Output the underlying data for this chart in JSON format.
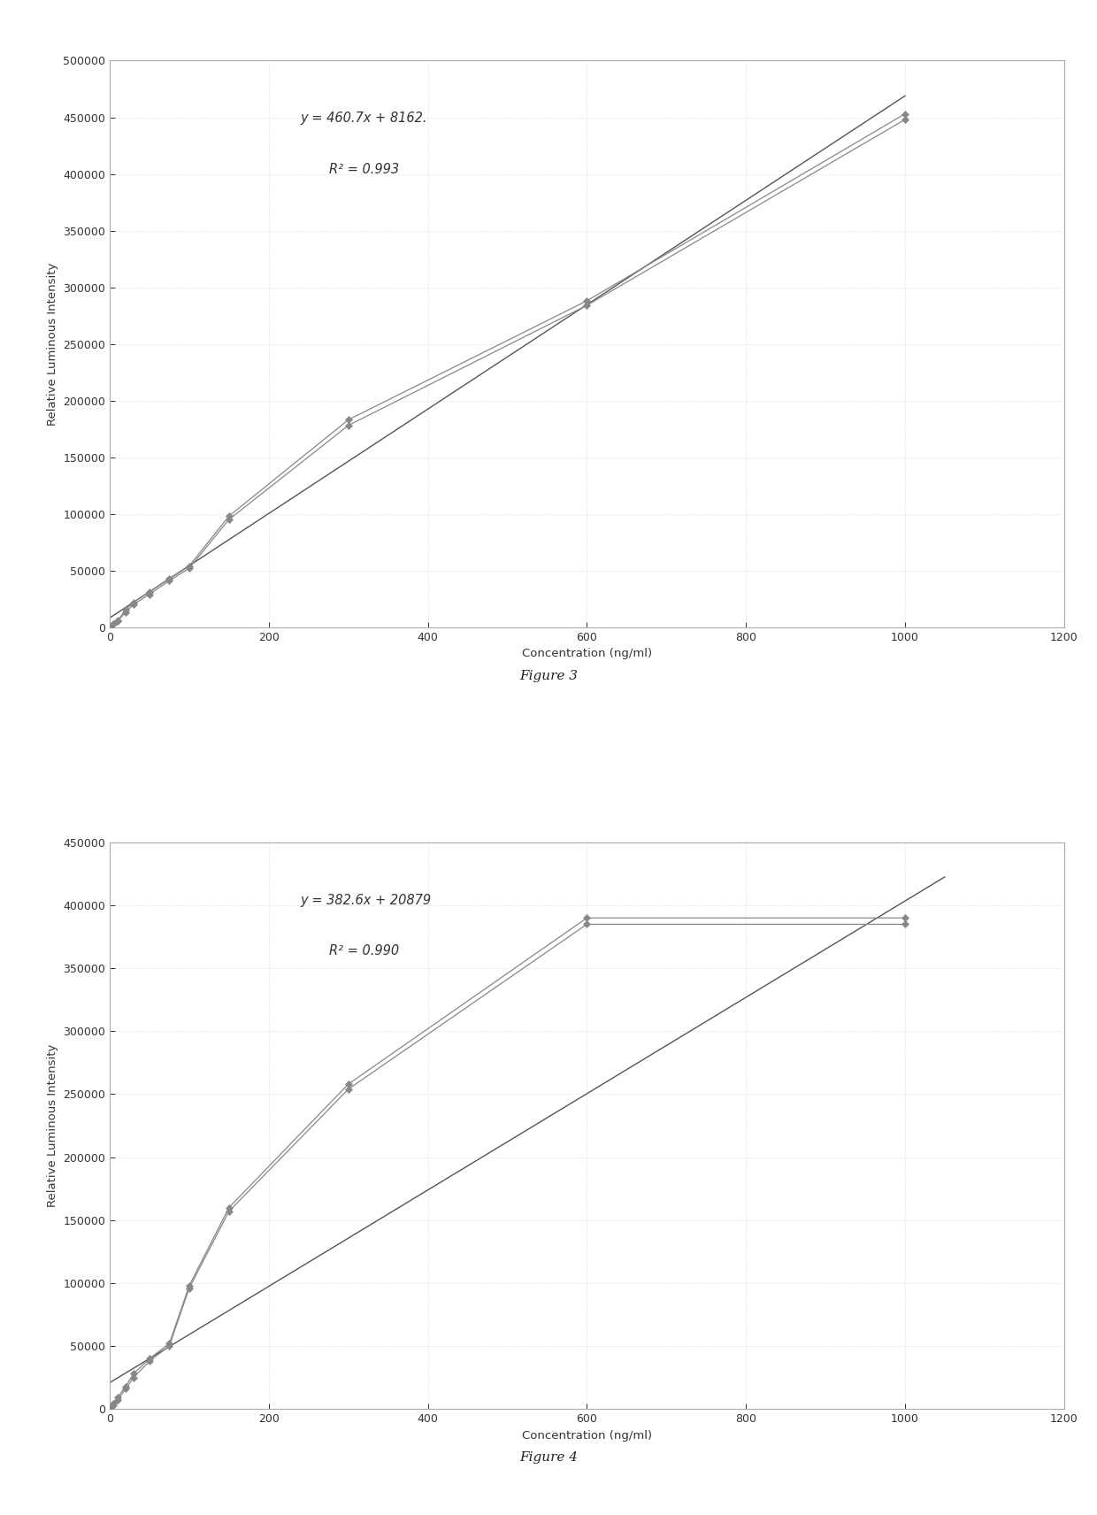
{
  "fig3": {
    "equation": "y = 460.7x + 8162.",
    "r2": "R² = 0.993",
    "slope": 460.7,
    "intercept": 8162,
    "series1_x": [
      0,
      5,
      10,
      20,
      30,
      50,
      75,
      100,
      150,
      300,
      600,
      1000
    ],
    "series1_y": [
      0,
      3000,
      6000,
      15000,
      22000,
      31000,
      43000,
      54000,
      98000,
      183000,
      288000,
      453000
    ],
    "series2_x": [
      0,
      5,
      10,
      20,
      30,
      50,
      75,
      100,
      150,
      300,
      600,
      1000
    ],
    "series2_y": [
      0,
      2500,
      5500,
      13000,
      20000,
      29000,
      41000,
      52000,
      95000,
      178000,
      284000,
      448000
    ],
    "fit_x": [
      0,
      1000
    ],
    "xlim": [
      0,
      1200
    ],
    "ylim": [
      0,
      500000
    ],
    "xticks": [
      0,
      200,
      400,
      600,
      800,
      1000,
      1200
    ],
    "yticks": [
      0,
      50000,
      100000,
      150000,
      200000,
      250000,
      300000,
      350000,
      400000,
      450000,
      500000
    ],
    "xlabel": "Concentration (ng/ml)",
    "ylabel": "Relative Luminous Intensity",
    "figure_label": "Figure 3"
  },
  "fig4": {
    "equation": "y = 382.6x + 20879",
    "r2": "R² = 0.990",
    "slope": 382.6,
    "intercept": 20879,
    "series1_x": [
      0,
      5,
      10,
      20,
      30,
      50,
      75,
      100,
      150,
      300,
      600,
      1000
    ],
    "series1_y": [
      0,
      4000,
      9000,
      18000,
      28000,
      40000,
      52000,
      98000,
      160000,
      258000,
      390000,
      390000
    ],
    "series2_x": [
      0,
      5,
      10,
      20,
      30,
      50,
      75,
      100,
      150,
      300,
      600,
      1000
    ],
    "series2_y": [
      0,
      3000,
      7000,
      16000,
      25000,
      38000,
      50000,
      96000,
      157000,
      254000,
      385000,
      385000
    ],
    "fit_x": [
      0,
      1050
    ],
    "xlim": [
      0,
      1200
    ],
    "ylim": [
      0,
      450000
    ],
    "xticks": [
      0,
      200,
      400,
      600,
      800,
      1000,
      1200
    ],
    "yticks": [
      0,
      50000,
      100000,
      150000,
      200000,
      250000,
      300000,
      350000,
      400000,
      450000
    ],
    "xlabel": "Concentration (ng/ml)",
    "ylabel": "Relative Luminous Intensity",
    "figure_label": "Figure 4"
  },
  "page_bg": "#ffffff",
  "plot_bg": "#ffffff",
  "border_color": "#aaaaaa",
  "line_color": "#888888",
  "marker_color": "#888888",
  "fit_line_color": "#555555",
  "text_color": "#333333",
  "grid_color": "#cccccc"
}
